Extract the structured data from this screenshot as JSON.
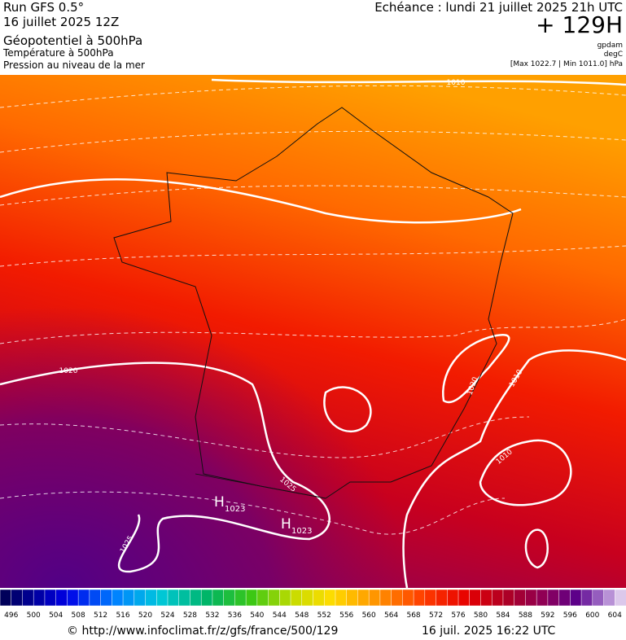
{
  "header": {
    "run": "Run GFS 0.5°",
    "date": "16 juillet 2025 12Z",
    "field1": "Géopotentiel à 500hPa",
    "field2": "Température à 500hPa",
    "field3": "Pression au niveau de la mer",
    "echeance": "Echéance : lundi 21 juillet 2025 21h UTC",
    "lead": "+ 129H",
    "unit1": "gpdam",
    "unit2": "degC",
    "range": "[Max 1022.7 | Min 1011.0] hPa"
  },
  "map": {
    "isobar_labels": [
      "1010",
      "1020",
      "1020",
      "1010",
      "1010",
      "1025",
      "1025"
    ],
    "highs": [
      {
        "symbol": "H",
        "value": "1023"
      },
      {
        "symbol": "H",
        "value": "1023"
      }
    ]
  },
  "colorbar": {
    "labels": [
      496,
      500,
      504,
      508,
      512,
      516,
      520,
      524,
      528,
      532,
      536,
      540,
      544,
      548,
      552,
      556,
      560,
      564,
      568,
      572,
      576,
      580,
      584,
      588,
      592,
      596,
      600,
      604
    ]
  },
  "footer": {
    "source": "© http://www.infoclimat.fr/z/gfs/france/500/129",
    "generated": "16 juil. 2025 16:22 UTC"
  }
}
